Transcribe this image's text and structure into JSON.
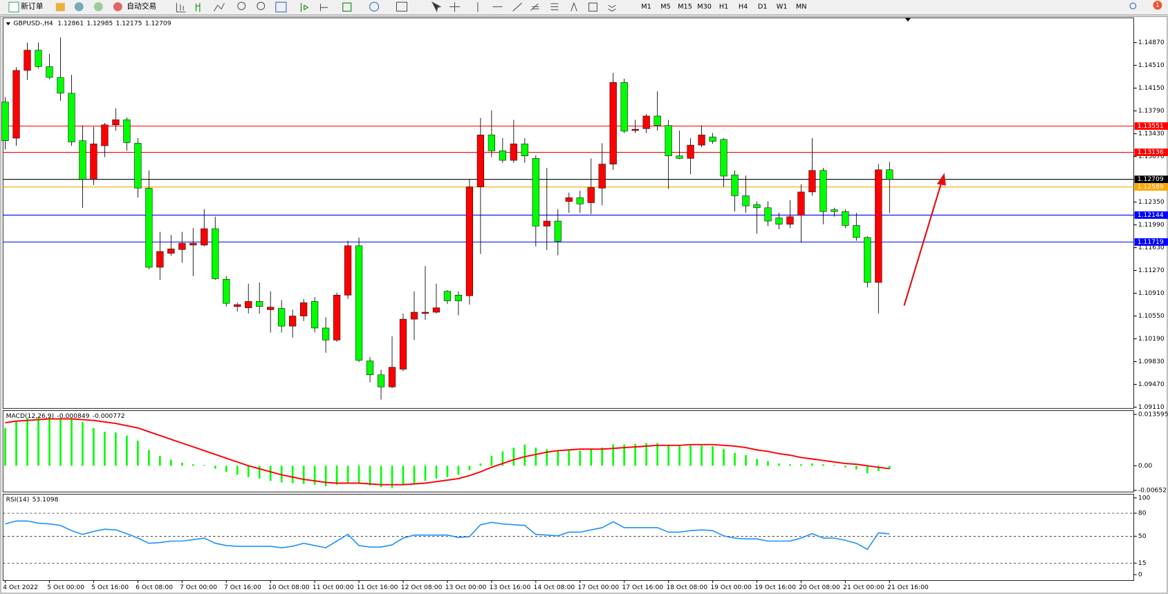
{
  "toolbar": {
    "buttons": [
      "新订单",
      "自动交易"
    ],
    "timeframes": [
      "M1",
      "M5",
      "M15",
      "M30",
      "H1",
      "H4",
      "D1",
      "W1",
      "MN"
    ],
    "badge": 1
  },
  "chart_data": [
    {
      "type": "candlestick",
      "title": "GBPUSD-,H4",
      "up_color": "#ff0000",
      "down_color": "#00ff00",
      "wick_color": "#000000",
      "grid": false,
      "categories": [
        "4 Oct 2022",
        null,
        null,
        null,
        "5 Oct 00:00",
        null,
        null,
        null,
        "5 Oct 16:00",
        null,
        null,
        null,
        "6 Oct 08:00",
        null,
        null,
        null,
        "7 Oct 00:00",
        null,
        null,
        null,
        "7 Oct 16:00",
        null,
        null,
        null,
        "10 Oct 08:00",
        null,
        null,
        null,
        "11 Oct 00:00",
        null,
        null,
        null,
        "11 Oct 16:00",
        null,
        null,
        null,
        "12 Oct 08:00",
        null,
        null,
        null,
        "13 Oct 00:00",
        null,
        null,
        null,
        "13 Oct 16:00",
        null,
        null,
        null,
        "14 Oct 08:00",
        null,
        null,
        null,
        "17 Oct 00:00",
        null,
        null,
        null,
        "17 Oct 16:00",
        null,
        null,
        null,
        "18 Oct 08:00",
        null,
        null,
        null,
        "19 Oct 00:00",
        null,
        null,
        null,
        "19 Oct 16:00",
        null,
        null,
        null,
        "20 Oct 08:00",
        null,
        null,
        null,
        "21 Oct 00:00",
        null,
        null,
        null,
        "21 Oct 16:00"
      ],
      "open": [
        1.1393,
        1.1336,
        1.1443,
        1.1475,
        1.1449,
        1.1432,
        1.1407,
        1.1332,
        1.1271,
        1.1324,
        1.1357,
        1.1365,
        1.1328,
        1.1257,
        1.1132,
        1.1154,
        1.116,
        1.1167,
        1.1167,
        1.1193,
        1.1113,
        1.107,
        1.1068,
        1.1078,
        1.1065,
        1.1067,
        1.1039,
        1.1055,
        1.1078,
        1.1036,
        1.1017,
        1.1088,
        1.1166,
        1.0984,
        1.0962,
        1.0943,
        1.0971,
        1.105,
        1.1059,
        1.1061,
        1.1094,
        1.1088,
        1.1087,
        1.1259,
        1.1341,
        1.1316,
        1.1301,
        1.1327,
        1.1304,
        1.1197,
        1.1205,
        1.1236,
        1.1242,
        1.1234,
        1.1257,
        1.1295,
        1.1424,
        1.1348,
        1.1351,
        1.1371,
        1.1356,
        1.1308,
        1.1304,
        1.1325,
        1.1338,
        1.1334,
        1.1278,
        1.1245,
        1.1231,
        1.1226,
        1.121,
        1.12,
        1.1214,
        1.1251,
        1.1285,
        1.1223,
        1.122,
        1.1198,
        1.1179,
        1.1108,
        1.12861
      ],
      "high": [
        1.1401,
        1.1448,
        1.1487,
        1.1487,
        1.1469,
        1.1495,
        1.1436,
        1.1356,
        1.1354,
        1.136,
        1.1383,
        1.1369,
        1.1336,
        1.1285,
        1.1188,
        1.1183,
        1.1188,
        1.1194,
        1.1224,
        1.1212,
        1.1118,
        1.1076,
        1.1106,
        1.1108,
        1.1094,
        1.108,
        1.1065,
        1.1082,
        1.1085,
        1.1053,
        1.1092,
        1.1174,
        1.1179,
        1.099,
        1.097,
        1.1023,
        1.1059,
        1.1094,
        1.1134,
        1.1106,
        1.1096,
        1.1094,
        1.1271,
        1.1368,
        1.138,
        1.1336,
        1.1365,
        1.1336,
        1.1309,
        1.1289,
        1.1224,
        1.125,
        1.1253,
        1.1304,
        1.1328,
        1.1439,
        1.143,
        1.1365,
        1.1374,
        1.141,
        1.1365,
        1.1348,
        1.1336,
        1.1356,
        1.1344,
        1.1336,
        1.1285,
        1.1277,
        1.1236,
        1.1236,
        1.1218,
        1.1238,
        1.1263,
        1.1336,
        1.1289,
        1.1226,
        1.1224,
        1.1218,
        1.1181,
        1.1295,
        1.12985
      ],
      "low": [
        1.1318,
        1.1324,
        1.1428,
        1.1446,
        1.1429,
        1.1395,
        1.1324,
        1.1226,
        1.1262,
        1.1306,
        1.1348,
        1.1316,
        1.1242,
        1.1129,
        1.1112,
        1.115,
        1.1139,
        1.1118,
        1.1165,
        1.1112,
        1.107,
        1.1062,
        1.1059,
        1.1059,
        1.1029,
        1.1029,
        1.1021,
        1.1047,
        1.1029,
        1.0997,
        1.1014,
        1.1082,
        1.0982,
        1.095,
        1.0923,
        1.0941,
        1.0968,
        1.1017,
        1.1049,
        1.1059,
        1.1074,
        1.1056,
        1.1073,
        1.1153,
        1.1306,
        1.1297,
        1.1297,
        1.1297,
        1.1165,
        1.1159,
        1.1151,
        1.1218,
        1.1218,
        1.1216,
        1.123,
        1.1286,
        1.1344,
        1.1344,
        1.1344,
        1.1348,
        1.1256,
        1.1303,
        1.1279,
        1.1322,
        1.1327,
        1.1259,
        1.122,
        1.1218,
        1.1185,
        1.1197,
        1.1192,
        1.1194,
        1.1171,
        1.1245,
        1.12,
        1.1212,
        1.1194,
        1.1174,
        1.11,
        1.1059,
        1.12175
      ],
      "close": [
        1.1332,
        1.1443,
        1.1475,
        1.1449,
        1.1432,
        1.1407,
        1.133,
        1.1271,
        1.1327,
        1.1357,
        1.1365,
        1.1329,
        1.1257,
        1.1132,
        1.1157,
        1.1161,
        1.117,
        1.117,
        1.1193,
        1.1114,
        1.1075,
        1.1073,
        1.1078,
        1.107,
        1.1069,
        1.1039,
        1.1055,
        1.1076,
        1.1036,
        1.1017,
        1.1088,
        1.1166,
        1.0985,
        1.0962,
        1.0943,
        1.0974,
        1.105,
        1.1061,
        1.1061,
        1.1068,
        1.1079,
        1.1079,
        1.1259,
        1.1341,
        1.1316,
        1.1301,
        1.1327,
        1.1308,
        1.1197,
        1.1205,
        1.1173,
        1.1242,
        1.1232,
        1.1258,
        1.1295,
        1.1424,
        1.1347,
        1.135,
        1.1371,
        1.1356,
        1.1308,
        1.1304,
        1.1325,
        1.1341,
        1.1331,
        1.1276,
        1.1245,
        1.1229,
        1.1226,
        1.1205,
        1.12,
        1.1212,
        1.1251,
        1.1285,
        1.122,
        1.122,
        1.1198,
        1.1179,
        1.1108,
        1.1286,
        1.12709
      ],
      "ylim": [
        1.0909,
        1.1526
      ],
      "yticks": [
        {
          "value": 1.1487,
          "label": "1.14870"
        },
        {
          "value": 1.1451,
          "label": "1.14510"
        },
        {
          "value": 1.1415,
          "label": "1.14150"
        },
        {
          "value": 1.1379,
          "label": "1.13790"
        },
        {
          "value": 1.1343,
          "label": "1.13430"
        },
        {
          "value": 1.1307,
          "label": "1.13070"
        },
        {
          "value": 1.1235,
          "label": "1.12350"
        },
        {
          "value": 1.1199,
          "label": "1.11990"
        },
        {
          "value": 1.1163,
          "label": "1.11630"
        },
        {
          "value": 1.1127,
          "label": "1.11270"
        },
        {
          "value": 1.1091,
          "label": "1.10910"
        },
        {
          "value": 1.1055,
          "label": "1.10550"
        },
        {
          "value": 1.1019,
          "label": "1.10190"
        },
        {
          "value": 1.0983,
          "label": "1.09830"
        },
        {
          "value": 1.0947,
          "label": "1.09470"
        },
        {
          "value": 1.0911,
          "label": "1.09110"
        }
      ],
      "hlines": [
        {
          "value": 1.13551,
          "color": "#ff0000"
        },
        {
          "value": 1.13136,
          "color": "#ff0000"
        },
        {
          "value": 1.12589,
          "color": "#ffa500"
        },
        {
          "value": 1.12144,
          "color": "#0000ff"
        },
        {
          "value": 1.11719,
          "color": "#0000ff"
        }
      ],
      "bid_color": "#000000"
    },
    {
      "type": "macd",
      "title": "MACD(12,26,9)",
      "ylim": [
        -0.00652,
        0.013595
      ],
      "yticks": [
        0.013595,
        {
          "value": 0,
          "label": "0.00"
        },
        -0.00652
      ],
      "series": [
        {
          "style": "bar",
          "color": "#00ff00",
          "values": [
            0.01,
            0.0118,
            0.0126,
            0.0128,
            0.0128,
            0.0126,
            0.0124,
            0.0116,
            0.01,
            0.009,
            0.0088,
            0.008,
            0.0066,
            0.0042,
            0.0026,
            0.0016,
            0.0008,
            0.0004,
            0.0002,
            -0.0008,
            -0.0016,
            -0.0024,
            -0.003,
            -0.0034,
            -0.004,
            -0.0044,
            -0.0046,
            -0.0048,
            -0.005,
            -0.0054,
            -0.005,
            -0.0046,
            -0.0046,
            -0.0052,
            -0.0056,
            -0.0058,
            -0.0052,
            -0.0046,
            -0.004,
            -0.0034,
            -0.003,
            -0.0024,
            -0.0012,
            0.0006,
            0.0026,
            0.0038,
            0.0048,
            0.0056,
            0.0048,
            0.0044,
            0.004,
            0.004,
            0.004,
            0.0044,
            0.0048,
            0.0056,
            0.0056,
            0.0058,
            0.006,
            0.006,
            0.0056,
            0.0054,
            0.0054,
            0.0054,
            0.0052,
            0.0044,
            0.0034,
            0.0028,
            0.0018,
            0.0012,
            0.0006,
            0.0004,
            0.0004,
            0.0006,
            0.0004,
            0.0002,
            -0.0004,
            -0.001,
            -0.002,
            -0.0014,
            -0.000849
          ]
        },
        {
          "style": "line",
          "color": "#ff0000",
          "values": [
            0.0114,
            0.0118,
            0.012,
            0.0122,
            0.0124,
            0.0124,
            0.0124,
            0.0122,
            0.012,
            0.0116,
            0.0112,
            0.0106,
            0.01,
            0.009,
            0.008,
            0.007,
            0.006,
            0.005,
            0.004,
            0.003,
            0.002,
            0.001,
            0,
            -0.0008,
            -0.0016,
            -0.0024,
            -0.003,
            -0.0036,
            -0.004,
            -0.0044,
            -0.0046,
            -0.0046,
            -0.0046,
            -0.0048,
            -0.005,
            -0.005,
            -0.005,
            -0.0048,
            -0.0046,
            -0.0042,
            -0.0038,
            -0.0034,
            -0.0026,
            -0.0016,
            -0.0004,
            0.0006,
            0.0016,
            0.0024,
            0.003,
            0.0036,
            0.004,
            0.0042,
            0.0044,
            0.0044,
            0.0044,
            0.0046,
            0.0048,
            0.005,
            0.0052,
            0.0054,
            0.0054,
            0.0054,
            0.0056,
            0.0056,
            0.0056,
            0.0054,
            0.0052,
            0.0048,
            0.0042,
            0.0038,
            0.0032,
            0.0028,
            0.0022,
            0.0018,
            0.0014,
            0.001,
            0.0006,
            0.0004,
            0,
            -0.0004,
            -0.000772
          ]
        }
      ]
    },
    {
      "type": "rsi",
      "title": "RSI(14)",
      "color": "#1e90ff",
      "ylim": [
        0,
        100
      ],
      "yticks": [
        0,
        15,
        50,
        80,
        100
      ],
      "levels": [
        15,
        50,
        80
      ],
      "values": [
        66.0,
        69.9,
        69.9,
        67.0,
        66.0,
        64.1,
        57.3,
        52.4,
        56.3,
        59.2,
        58.3,
        53.4,
        47.6,
        40.8,
        41.7,
        43.7,
        43.7,
        45.6,
        47.6,
        40.8,
        37.9,
        36.9,
        36.9,
        36.9,
        36.9,
        35.0,
        36.9,
        40.8,
        37.9,
        35.0,
        43.7,
        52.4,
        37.9,
        35.9,
        35.9,
        38.8,
        47.6,
        51.5,
        51.5,
        51.5,
        51.5,
        48.5,
        49.5,
        65.0,
        68.0,
        66.0,
        65.0,
        64.1,
        52.4,
        51.5,
        50.5,
        55.3,
        55.3,
        58.3,
        61.2,
        68.9,
        61.2,
        61.2,
        61.2,
        61.2,
        55.3,
        55.3,
        57.3,
        58.3,
        57.3,
        50.5,
        47.6,
        46.6,
        46.6,
        43.7,
        43.7,
        43.7,
        47.6,
        53.4,
        47.6,
        47.6,
        44.7,
        40.8,
        33.0,
        54.4,
        53.1098
      ]
    }
  ]
}
